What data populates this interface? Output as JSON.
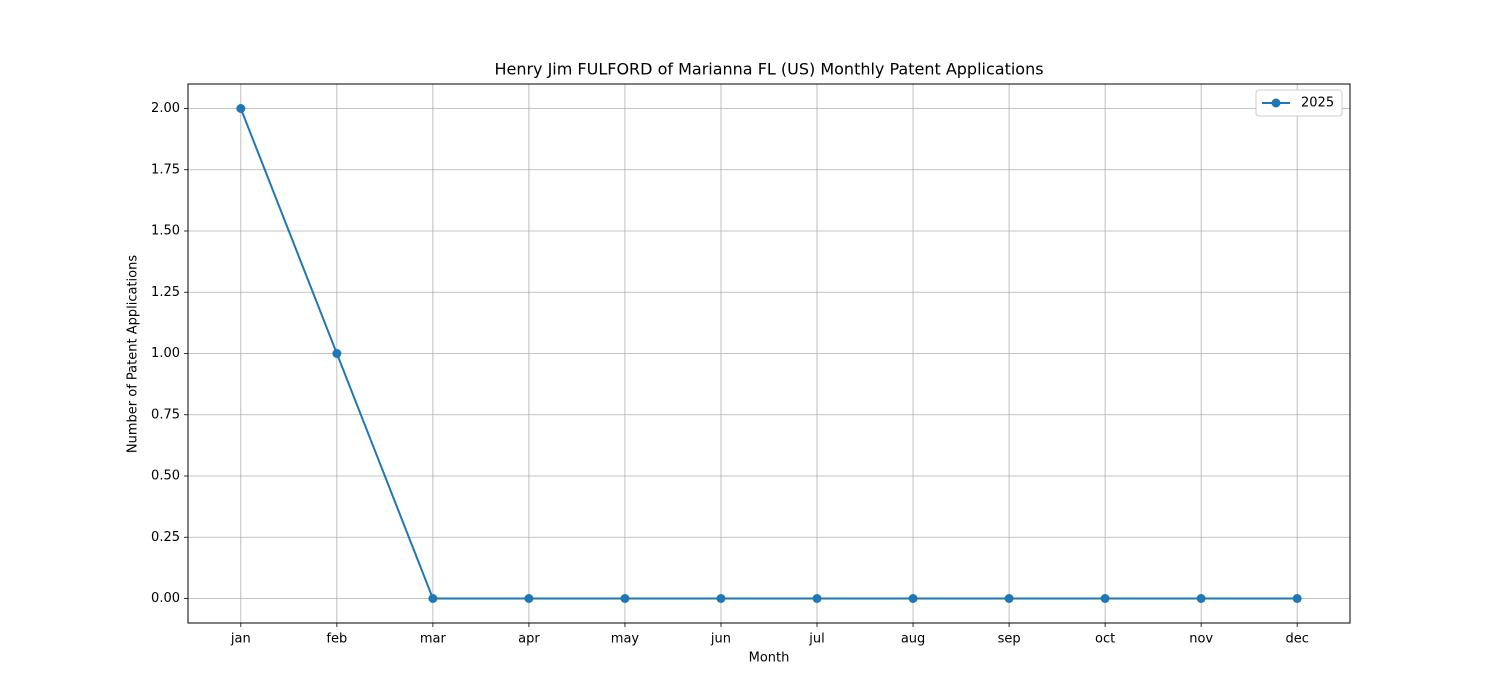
{
  "chart_data": {
    "type": "line",
    "title": "Henry Jim FULFORD of Marianna FL (US) Monthly Patent Applications",
    "x_label": "Month",
    "y_label": "Number of Patent Applications",
    "categories": [
      "jan",
      "feb",
      "mar",
      "apr",
      "may",
      "jun",
      "jul",
      "aug",
      "sep",
      "oct",
      "nov",
      "dec"
    ],
    "series": [
      {
        "name": "2025",
        "color": "#1f77b4",
        "values": [
          2,
          1,
          0,
          0,
          0,
          0,
          0,
          0,
          0,
          0,
          0,
          0
        ]
      }
    ],
    "ylim": [
      -0.1,
      2.1
    ],
    "yticks": [
      {
        "value": 0,
        "label": "0.00"
      },
      {
        "value": 0.25,
        "label": "0.25"
      },
      {
        "value": 0.5,
        "label": "0.50"
      },
      {
        "value": 0.75,
        "label": "0.75"
      },
      {
        "value": 1,
        "label": "1.00"
      },
      {
        "value": 1.25,
        "label": "1.25"
      },
      {
        "value": 1.5,
        "label": "1.50"
      },
      {
        "value": 1.75,
        "label": "1.75"
      },
      {
        "value": 2,
        "label": "2.00"
      }
    ],
    "grid": true,
    "legend": "upper right"
  }
}
